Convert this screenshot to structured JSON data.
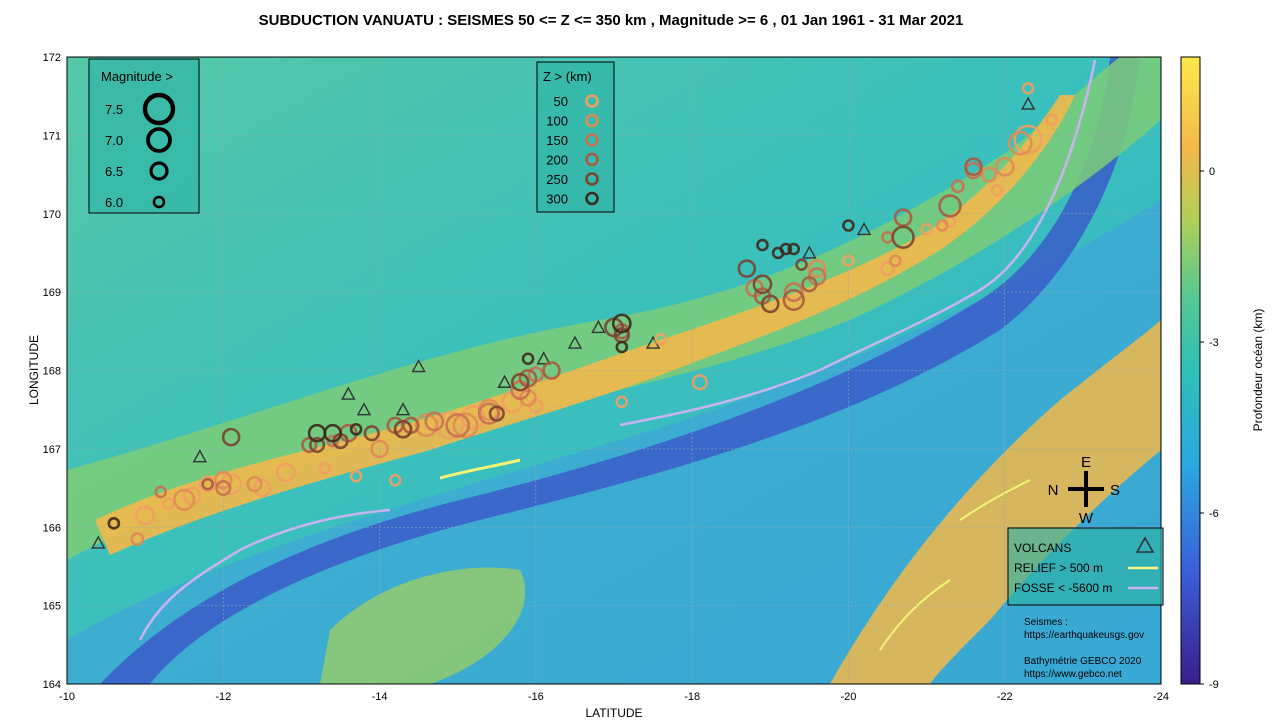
{
  "title": "SUBDUCTION VANUATU : SEISMES 50 <= Z <= 350 km , Magnitude >=  6  , 01 Jan 1961 - 31 Mar 2021",
  "chart_data": {
    "type": "scatter",
    "xlabel": "LATITUDE",
    "ylabel": "LONGITUDE",
    "xlim": [
      -10,
      -24
    ],
    "ylim": [
      164,
      172
    ],
    "xticks": [
      "-10",
      "-12",
      "-14",
      "-16",
      "-18",
      "-20",
      "-22",
      "-24"
    ],
    "yticks": [
      "164",
      "165",
      "166",
      "167",
      "168",
      "169",
      "170",
      "171",
      "172"
    ],
    "grid": true,
    "colorbar": {
      "label": "Profondeur océan (km)",
      "range": [
        -9,
        2
      ],
      "ticks": [
        "0",
        "-3",
        "-6",
        "-9"
      ],
      "colors": [
        "#3a1e8c",
        "#3b6fe0",
        "#2ab8cc",
        "#4cc88a",
        "#a4cf5a",
        "#f5b84a",
        "#fde74c"
      ]
    },
    "magnitude_legend": {
      "title": "Magnitude >",
      "items": [
        {
          "label": "7.5",
          "mag": 7.5
        },
        {
          "label": "7.0",
          "mag": 7.0
        },
        {
          "label": "6.5",
          "mag": 6.5
        },
        {
          "label": "6.0",
          "mag": 6.0
        }
      ]
    },
    "depth_legend": {
      "title": "Z > (km)",
      "items": [
        {
          "label": "50",
          "color": "#f0a060"
        },
        {
          "label": "100",
          "color": "#e08a58"
        },
        {
          "label": "150",
          "color": "#c87050"
        },
        {
          "label": "200",
          "color": "#a85a40"
        },
        {
          "label": "250",
          "color": "#7a4430"
        },
        {
          "label": "300",
          "color": "#3d2a1a"
        }
      ]
    },
    "feature_legend": {
      "volcans": "VOLCANS",
      "relief": "RELIEF >  500 m",
      "fosse": "FOSSE <  -5600 m",
      "relief_color": "#f4f47a",
      "fosse_color": "#c8b4f0"
    },
    "compass": {
      "e": "E",
      "w": "W",
      "n": "N",
      "s": "S"
    },
    "credits": {
      "seismes_label": "Seismes :",
      "seismes_url": "https://earthquakeusgs.gov",
      "bathy_label": "Bathymétrie GEBCO 2020",
      "bathy_url": "https://www.gebco.net"
    },
    "volcanoes": [
      {
        "lat": -10.4,
        "lon": 165.8
      },
      {
        "lat": -11.7,
        "lon": 166.9
      },
      {
        "lat": -13.6,
        "lon": 167.7
      },
      {
        "lat": -13.8,
        "lon": 167.5
      },
      {
        "lat": -14.3,
        "lon": 167.5
      },
      {
        "lat": -14.5,
        "lon": 168.05
      },
      {
        "lat": -15.6,
        "lon": 167.85
      },
      {
        "lat": -16.1,
        "lon": 168.15
      },
      {
        "lat": -16.5,
        "lon": 168.35
      },
      {
        "lat": -16.8,
        "lon": 168.55
      },
      {
        "lat": -17.5,
        "lon": 168.35
      },
      {
        "lat": -19.5,
        "lon": 169.5
      },
      {
        "lat": -20.2,
        "lon": 169.8
      },
      {
        "lat": -22.3,
        "lon": 171.4
      }
    ],
    "series": [
      {
        "name": "50",
        "points": [
          {
            "lat": -11.0,
            "lon": 166.15,
            "mag": 6.6
          },
          {
            "lat": -11.3,
            "lon": 166.3,
            "mag": 6.0
          },
          {
            "lat": -11.6,
            "lon": 166.4,
            "mag": 6.5
          },
          {
            "lat": -11.8,
            "lon": 166.55,
            "mag": 6.4
          },
          {
            "lat": -12.1,
            "lon": 166.55,
            "mag": 6.8
          },
          {
            "lat": -12.5,
            "lon": 166.5,
            "mag": 6.5
          },
          {
            "lat": -12.8,
            "lon": 166.7,
            "mag": 6.6
          },
          {
            "lat": -13.3,
            "lon": 166.75,
            "mag": 6.0
          },
          {
            "lat": -13.7,
            "lon": 166.65,
            "mag": 6.0
          },
          {
            "lat": -14.2,
            "lon": 166.6,
            "mag": 6.0
          },
          {
            "lat": -14.9,
            "lon": 167.3,
            "mag": 7.3
          },
          {
            "lat": -15.2,
            "lon": 167.4,
            "mag": 7.0
          },
          {
            "lat": -15.7,
            "lon": 167.6,
            "mag": 6.8
          },
          {
            "lat": -16.0,
            "lon": 167.55,
            "mag": 6.2
          },
          {
            "lat": -17.1,
            "lon": 167.6,
            "mag": 6.0
          },
          {
            "lat": -18.1,
            "lon": 167.85,
            "mag": 6.3
          },
          {
            "lat": -17.6,
            "lon": 168.4,
            "mag": 6.0
          },
          {
            "lat": -20.0,
            "lon": 169.4,
            "mag": 6.0
          },
          {
            "lat": -20.5,
            "lon": 169.3,
            "mag": 6.2
          },
          {
            "lat": -21.0,
            "lon": 169.8,
            "mag": 6.0
          },
          {
            "lat": -21.3,
            "lon": 169.9,
            "mag": 6.0
          },
          {
            "lat": -21.9,
            "lon": 170.3,
            "mag": 6.0
          },
          {
            "lat": -22.3,
            "lon": 170.95,
            "mag": 7.4
          },
          {
            "lat": -22.6,
            "lon": 171.2,
            "mag": 6.0
          },
          {
            "lat": -22.3,
            "lon": 171.6,
            "mag": 6.0
          }
        ]
      },
      {
        "name": "100",
        "points": [
          {
            "lat": -10.9,
            "lon": 165.85,
            "mag": 6.1
          },
          {
            "lat": -11.5,
            "lon": 166.35,
            "mag": 6.8
          },
          {
            "lat": -12.0,
            "lon": 166.6,
            "mag": 6.5
          },
          {
            "lat": -12.4,
            "lon": 166.55,
            "mag": 6.3
          },
          {
            "lat": -13.5,
            "lon": 167.1,
            "mag": 6.3
          },
          {
            "lat": -14.0,
            "lon": 167.0,
            "mag": 6.5
          },
          {
            "lat": -14.6,
            "lon": 167.3,
            "mag": 6.9
          },
          {
            "lat": -15.1,
            "lon": 167.3,
            "mag": 7.1
          },
          {
            "lat": -15.4,
            "lon": 167.5,
            "mag": 6.8
          },
          {
            "lat": -15.9,
            "lon": 167.65,
            "mag": 6.4
          },
          {
            "lat": -19.6,
            "lon": 169.3,
            "mag": 6.5
          },
          {
            "lat": -20.6,
            "lon": 169.4,
            "mag": 6.0
          },
          {
            "lat": -21.2,
            "lon": 169.85,
            "mag": 6.0
          },
          {
            "lat": -21.8,
            "lon": 170.5,
            "mag": 6.3
          },
          {
            "lat": -22.0,
            "lon": 170.6,
            "mag": 6.6
          },
          {
            "lat": -22.2,
            "lon": 170.9,
            "mag": 7.0
          }
        ]
      },
      {
        "name": "150",
        "points": [
          {
            "lat": -11.2,
            "lon": 166.45,
            "mag": 6.0
          },
          {
            "lat": -12.0,
            "lon": 166.5,
            "mag": 6.3
          },
          {
            "lat": -13.4,
            "lon": 167.1,
            "mag": 6.0
          },
          {
            "lat": -14.3,
            "lon": 167.25,
            "mag": 6.5
          },
          {
            "lat": -14.7,
            "lon": 167.35,
            "mag": 6.6
          },
          {
            "lat": -15.0,
            "lon": 167.3,
            "mag": 7.0
          },
          {
            "lat": -15.4,
            "lon": 167.45,
            "mag": 6.8
          },
          {
            "lat": -15.8,
            "lon": 167.75,
            "mag": 6.6
          },
          {
            "lat": -16.0,
            "lon": 167.95,
            "mag": 6.3
          },
          {
            "lat": -18.8,
            "lon": 169.05,
            "mag": 6.5
          },
          {
            "lat": -19.3,
            "lon": 169.0,
            "mag": 6.6
          },
          {
            "lat": -19.6,
            "lon": 169.2,
            "mag": 6.5
          },
          {
            "lat": -20.5,
            "lon": 169.7,
            "mag": 6.0
          },
          {
            "lat": -21.4,
            "lon": 170.35,
            "mag": 6.1
          },
          {
            "lat": -21.6,
            "lon": 170.55,
            "mag": 6.4
          }
        ]
      },
      {
        "name": "200",
        "points": [
          {
            "lat": -11.8,
            "lon": 166.55,
            "mag": 6.0
          },
          {
            "lat": -13.1,
            "lon": 167.05,
            "mag": 6.3
          },
          {
            "lat": -13.6,
            "lon": 167.2,
            "mag": 6.5
          },
          {
            "lat": -14.2,
            "lon": 167.3,
            "mag": 6.4
          },
          {
            "lat": -14.4,
            "lon": 167.3,
            "mag": 6.4
          },
          {
            "lat": -15.9,
            "lon": 167.9,
            "mag": 6.5
          },
          {
            "lat": -16.2,
            "lon": 168.0,
            "mag": 6.5
          },
          {
            "lat": -17.1,
            "lon": 168.5,
            "mag": 6.3
          },
          {
            "lat": -18.9,
            "lon": 168.95,
            "mag": 6.4
          },
          {
            "lat": -19.3,
            "lon": 168.9,
            "mag": 6.8
          },
          {
            "lat": -19.5,
            "lon": 169.1,
            "mag": 6.3
          },
          {
            "lat": -20.7,
            "lon": 169.95,
            "mag": 6.5
          },
          {
            "lat": -21.3,
            "lon": 170.1,
            "mag": 6.9
          },
          {
            "lat": -21.6,
            "lon": 170.6,
            "mag": 6.5
          }
        ]
      },
      {
        "name": "250",
        "points": [
          {
            "lat": -12.1,
            "lon": 167.15,
            "mag": 6.5
          },
          {
            "lat": -13.2,
            "lon": 167.05,
            "mag": 6.3
          },
          {
            "lat": -13.5,
            "lon": 167.1,
            "mag": 6.3
          },
          {
            "lat": -13.9,
            "lon": 167.2,
            "mag": 6.3
          },
          {
            "lat": -14.3,
            "lon": 167.25,
            "mag": 6.5
          },
          {
            "lat": -15.5,
            "lon": 167.45,
            "mag": 6.3
          },
          {
            "lat": -15.8,
            "lon": 167.85,
            "mag": 6.5
          },
          {
            "lat": -17.0,
            "lon": 168.55,
            "mag": 6.6
          },
          {
            "lat": -17.1,
            "lon": 168.45,
            "mag": 6.3
          },
          {
            "lat": -18.7,
            "lon": 169.3,
            "mag": 6.5
          },
          {
            "lat": -18.9,
            "lon": 169.1,
            "mag": 6.6
          },
          {
            "lat": -19.0,
            "lon": 168.85,
            "mag": 6.5
          },
          {
            "lat": -19.4,
            "lon": 169.35,
            "mag": 6.0
          },
          {
            "lat": -20.7,
            "lon": 169.7,
            "mag": 6.9
          }
        ]
      },
      {
        "name": "300",
        "points": [
          {
            "lat": -10.6,
            "lon": 166.05,
            "mag": 6.0
          },
          {
            "lat": -13.2,
            "lon": 167.2,
            "mag": 6.5
          },
          {
            "lat": -13.4,
            "lon": 167.2,
            "mag": 6.5
          },
          {
            "lat": -13.7,
            "lon": 167.25,
            "mag": 6.0
          },
          {
            "lat": -15.9,
            "lon": 168.15,
            "mag": 6.0
          },
          {
            "lat": -17.1,
            "lon": 168.6,
            "mag": 6.6
          },
          {
            "lat": -17.1,
            "lon": 168.3,
            "mag": 6.0
          },
          {
            "lat": -18.9,
            "lon": 169.6,
            "mag": 6.0
          },
          {
            "lat": -19.1,
            "lon": 169.5,
            "mag": 6.0
          },
          {
            "lat": -19.2,
            "lon": 169.55,
            "mag": 6.0
          },
          {
            "lat": -19.3,
            "lon": 169.55,
            "mag": 6.0
          },
          {
            "lat": -20.0,
            "lon": 169.85,
            "mag": 6.0
          }
        ]
      }
    ]
  }
}
